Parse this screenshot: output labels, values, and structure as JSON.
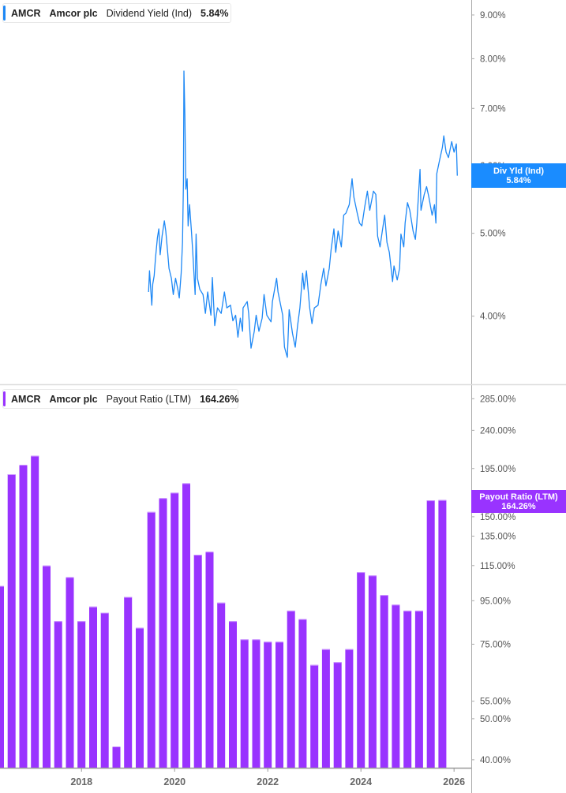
{
  "colors": {
    "yield": "#1e88f5",
    "payout": "#9933ff",
    "axis": "#999999",
    "label": "#555555"
  },
  "top_legend": {
    "ticker": "AMCR",
    "company": "Amcor plc",
    "metric": "Dividend Yield (Ind)",
    "value": "5.84%"
  },
  "bottom_legend": {
    "ticker": "AMCR",
    "company": "Amcor plc",
    "metric": "Payout Ratio (LTM)",
    "value": "164.26%"
  },
  "top_badge": {
    "label": "Div Yld (Ind)",
    "value": "5.84%"
  },
  "bottom_badge": {
    "label": "Payout Ratio (LTM)",
    "value": "164.26%"
  },
  "chart_data": [
    {
      "type": "line",
      "series_label": "Dividend Yield (Ind)",
      "yscale": "log",
      "xlim": [
        2016.25,
        2026.37
      ],
      "ylim": [
        3.33,
        9.37
      ],
      "grid": false,
      "y_ticks": [
        "4.00%",
        "5.00%",
        "6.00%",
        "7.00%",
        "8.00%",
        "9.00%"
      ],
      "y_tick_values": [
        4,
        5,
        6,
        7,
        8,
        9
      ],
      "x": [
        2019.44,
        2019.46,
        2019.51,
        2019.53,
        2019.56,
        2019.59,
        2019.63,
        2019.66,
        2019.69,
        2019.73,
        2019.78,
        2019.81,
        2019.85,
        2019.88,
        2019.93,
        2019.97,
        2020.02,
        2020.07,
        2020.1,
        2020.14,
        2020.17,
        2020.19,
        2020.2,
        2020.22,
        2020.24,
        2020.27,
        2020.29,
        2020.32,
        2020.36,
        2020.39,
        2020.44,
        2020.46,
        2020.49,
        2020.54,
        2020.61,
        2020.66,
        2020.71,
        2020.78,
        2020.81,
        2020.86,
        2020.92,
        2021.0,
        2021.07,
        2021.12,
        2021.2,
        2021.25,
        2021.31,
        2021.36,
        2021.41,
        2021.46,
        2021.47,
        2021.56,
        2021.59,
        2021.64,
        2021.71,
        2021.75,
        2021.81,
        2021.88,
        2021.92,
        2021.98,
        2022.07,
        2022.1,
        2022.19,
        2022.22,
        2022.27,
        2022.32,
        2022.36,
        2022.42,
        2022.46,
        2022.53,
        2022.59,
        2022.64,
        2022.69,
        2022.75,
        2022.78,
        2022.83,
        2022.9,
        2022.95,
        2023.0,
        2023.08,
        2023.14,
        2023.2,
        2023.25,
        2023.32,
        2023.36,
        2023.42,
        2023.46,
        2023.51,
        2023.58,
        2023.63,
        2023.68,
        2023.75,
        2023.81,
        2023.85,
        2023.92,
        2023.97,
        2024.02,
        2024.08,
        2024.14,
        2024.19,
        2024.27,
        2024.32,
        2024.36,
        2024.41,
        2024.46,
        2024.51,
        2024.56,
        2024.61,
        2024.68,
        2024.71,
        2024.78,
        2024.83,
        2024.86,
        2024.92,
        2024.95,
        2025.0,
        2025.05,
        2025.12,
        2025.17,
        2025.2,
        2025.27,
        2025.29,
        2025.36,
        2025.41,
        2025.46,
        2025.53,
        2025.58,
        2025.61,
        2025.63,
        2025.69,
        2025.75,
        2025.78,
        2025.83,
        2025.88,
        2025.95,
        2026.0,
        2026.05,
        2026.07
      ],
      "y": [
        4.27,
        4.52,
        4.12,
        4.36,
        4.46,
        4.68,
        4.94,
        5.06,
        4.72,
        4.96,
        5.17,
        5.03,
        4.75,
        4.55,
        4.43,
        4.24,
        4.43,
        4.3,
        4.2,
        4.49,
        4.88,
        5.75,
        7.74,
        6.86,
        5.63,
        5.79,
        5.1,
        5.4,
        5.03,
        4.75,
        4.24,
        4.99,
        4.43,
        4.3,
        4.24,
        4.03,
        4.27,
        4.01,
        4.44,
        3.9,
        4.09,
        4.03,
        4.27,
        4.09,
        4.12,
        3.95,
        4.01,
        3.78,
        3.98,
        3.84,
        4.09,
        4.16,
        4.03,
        3.67,
        3.84,
        4.01,
        3.84,
        3.98,
        4.24,
        4.01,
        3.94,
        4.16,
        4.43,
        4.27,
        4.14,
        4.01,
        3.68,
        3.58,
        4.07,
        3.82,
        3.68,
        3.9,
        4.09,
        4.49,
        4.3,
        4.52,
        4.09,
        3.92,
        4.09,
        4.12,
        4.36,
        4.55,
        4.34,
        4.55,
        4.78,
        5.06,
        4.75,
        5.03,
        4.82,
        5.25,
        5.28,
        5.4,
        5.79,
        5.51,
        5.28,
        5.14,
        5.1,
        5.36,
        5.6,
        5.32,
        5.6,
        5.55,
        4.96,
        4.82,
        5.03,
        5.25,
        4.88,
        4.75,
        4.39,
        4.58,
        4.41,
        4.55,
        4.99,
        4.82,
        5.14,
        5.43,
        5.32,
        5.03,
        4.92,
        5.14,
        5.94,
        5.32,
        5.55,
        5.67,
        5.51,
        5.25,
        5.4,
        5.14,
        5.87,
        6.09,
        6.3,
        6.5,
        6.22,
        6.13,
        6.4,
        6.22,
        6.36,
        5.84
      ]
    },
    {
      "type": "bar",
      "series_label": "Payout Ratio (LTM)",
      "yscale": "log",
      "xlim": [
        2016.25,
        2026.37
      ],
      "ylim": [
        38.3,
        307
      ],
      "grid": false,
      "y_ticks": [
        "40.00%",
        "50.00%",
        "55.00%",
        "75.00%",
        "95.00%",
        "115.00%",
        "135.00%",
        "150.00%",
        "195.00%",
        "240.00%",
        "285.00%"
      ],
      "y_tick_values": [
        40,
        50,
        55,
        75,
        95,
        115,
        135,
        150,
        195,
        240,
        285
      ],
      "x_ticks": [
        "2018",
        "2020",
        "2022",
        "2024",
        "2026"
      ],
      "x_tick_values": [
        2018,
        2020,
        2022,
        2024,
        2026
      ],
      "x": [
        2016.25,
        2016.5,
        2016.75,
        2017.0,
        2017.25,
        2017.5,
        2017.75,
        2018.0,
        2018.25,
        2018.5,
        2018.75,
        2019.0,
        2019.25,
        2019.5,
        2019.75,
        2020.0,
        2020.25,
        2020.5,
        2020.75,
        2021.0,
        2021.25,
        2021.5,
        2021.75,
        2022.0,
        2022.25,
        2022.5,
        2022.75,
        2023.0,
        2023.25,
        2023.5,
        2023.75,
        2024.0,
        2024.25,
        2024.5,
        2024.75,
        2025.0,
        2025.25,
        2025.5,
        2025.75
      ],
      "values": [
        103,
        189,
        199,
        209,
        115,
        85,
        108,
        85,
        92,
        89,
        43,
        97,
        82,
        154,
        166,
        171,
        180,
        122,
        124,
        94,
        85,
        77,
        77,
        76,
        76,
        90,
        86,
        67,
        73,
        68,
        73,
        111,
        109,
        98,
        93,
        90,
        90,
        164.0,
        164.26
      ]
    }
  ]
}
